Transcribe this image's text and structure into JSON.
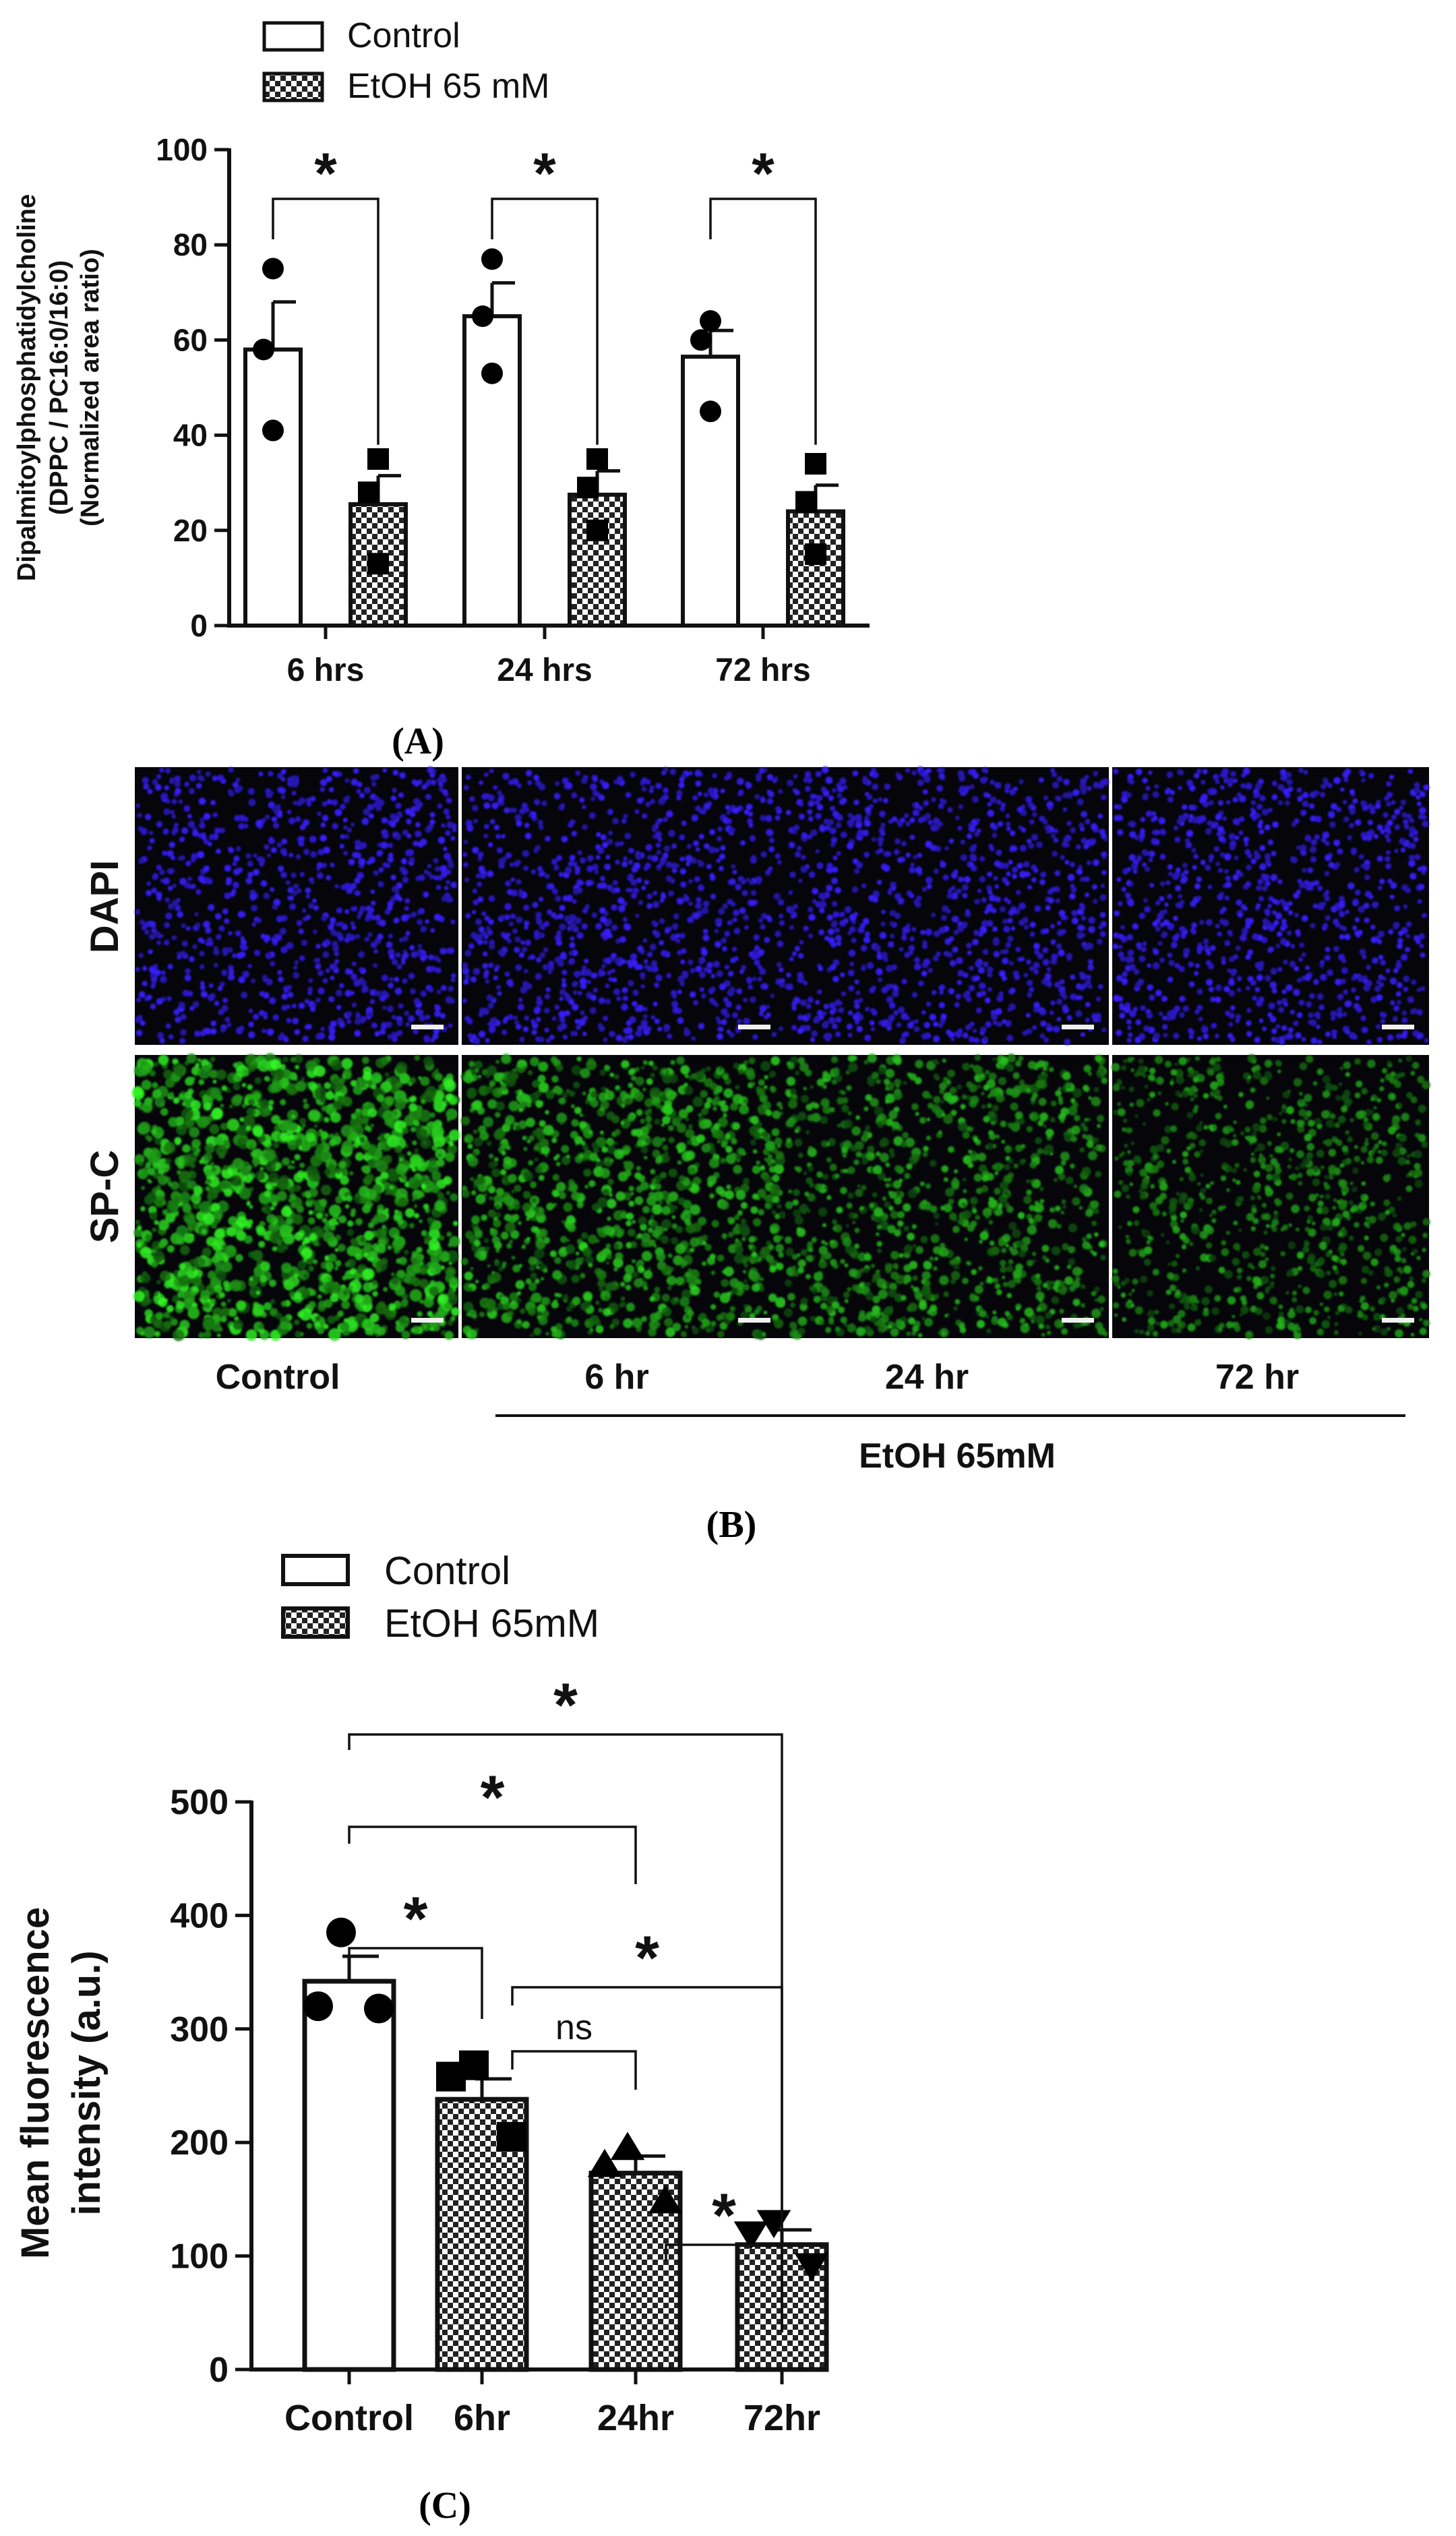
{
  "panel_labels": {
    "A": "(A)",
    "B": "(B)",
    "C": "(C)"
  },
  "colors": {
    "control_fill": "#ffffff",
    "etoh_fill": "checkerboard",
    "dapi": "#2b1fd0",
    "spc": "#2fa52a"
  },
  "chart_data": [
    {
      "type": "bar",
      "panel": "A",
      "categories": [
        "6 hrs",
        "24 hrs",
        "72 hrs"
      ],
      "ylabel_lines": [
        "Dipalmitoylphosphatidylcholine",
        "(DPPC / PC16:0/16:0)",
        "(Normalized area ratio)"
      ],
      "ylim": [
        0,
        100
      ],
      "yticks": [
        "0",
        "20",
        "40",
        "60",
        "80",
        "100"
      ],
      "legend": [
        "Control",
        "EtOH 65 mM"
      ],
      "legend_position": "top-left",
      "series": [
        {
          "name": "Control",
          "values": [
            58,
            65,
            56.5
          ],
          "sem": [
            10,
            7,
            5.5
          ],
          "points": [
            [
              75,
              58,
              41
            ],
            [
              77,
              65,
              53
            ],
            [
              64,
              60,
              45
            ]
          ]
        },
        {
          "name": "EtOH 65 mM",
          "values": [
            25.5,
            27.5,
            24
          ],
          "sem": [
            6,
            5,
            5.5
          ],
          "points": [
            [
              35,
              28,
              13
            ],
            [
              35,
              29,
              20
            ],
            [
              34,
              26,
              15
            ]
          ]
        }
      ],
      "significance": [
        {
          "groups": "6 hrs",
          "label": "*"
        },
        {
          "groups": "24 hrs",
          "label": "*"
        },
        {
          "groups": "72 hrs",
          "label": "*"
        }
      ]
    },
    {
      "type": "bar",
      "panel": "C",
      "categories": [
        "Control",
        "6hr",
        "24hr",
        "72hr"
      ],
      "ylabel_lines": [
        "Mean fluorescence",
        "intensity (a.u.)"
      ],
      "ylim": [
        0,
        500
      ],
      "yticks": [
        "0",
        "100",
        "200",
        "300",
        "400",
        "500"
      ],
      "legend": [
        "Control",
        "EtOH 65mM"
      ],
      "legend_position": "top-left",
      "values": [
        342,
        238,
        173,
        110
      ],
      "sem": [
        22,
        18,
        15,
        13
      ],
      "points": [
        [
          385,
          320,
          318
        ],
        [
          268,
          258,
          205
        ],
        [
          195,
          180,
          148
        ],
        [
          130,
          120,
          92
        ]
      ],
      "significance": [
        {
          "from": "Control",
          "to": "72hr",
          "label": "*"
        },
        {
          "from": "Control",
          "to": "24hr",
          "label": "*"
        },
        {
          "from": "Control",
          "to": "6hr",
          "label": "*"
        },
        {
          "from": "6hr",
          "to": "72hr",
          "label": "*"
        },
        {
          "from": "6hr",
          "to": "24hr",
          "label": "ns"
        },
        {
          "from": "24hr",
          "to": "72hr",
          "label": "*"
        }
      ]
    }
  ],
  "micrographs": {
    "row_labels": [
      "DAPI",
      "SP-C"
    ],
    "column_labels": [
      "Control",
      "6 hr",
      "24 hr",
      "72 hr"
    ],
    "group_label": "EtOH 65mM",
    "spc_relative_intensity": [
      1.0,
      0.7,
      0.55,
      0.4
    ]
  }
}
